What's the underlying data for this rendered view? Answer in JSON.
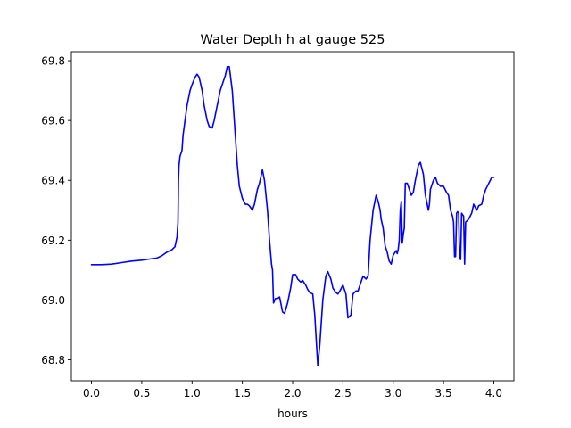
{
  "chart_data": {
    "type": "line",
    "title": "Water Depth h at gauge 525",
    "xlabel": "hours",
    "ylabel": "",
    "xlim": [
      -0.2,
      4.2
    ],
    "ylim": [
      68.73,
      69.83
    ],
    "xticks": [
      0.0,
      0.5,
      1.0,
      1.5,
      2.0,
      2.5,
      3.0,
      3.5,
      4.0
    ],
    "xtick_labels": [
      "0.0",
      "0.5",
      "1.0",
      "1.5",
      "2.0",
      "2.5",
      "3.0",
      "3.5",
      "4.0"
    ],
    "yticks": [
      68.8,
      69.0,
      69.2,
      69.4,
      69.6,
      69.8
    ],
    "ytick_labels": [
      "68.8",
      "69.0",
      "69.2",
      "69.4",
      "69.6",
      "69.8"
    ],
    "grid": false,
    "series": [
      {
        "color": "#0000ff",
        "x": [
          0.0,
          0.1,
          0.2,
          0.3,
          0.4,
          0.5,
          0.6,
          0.65,
          0.7,
          0.75,
          0.8,
          0.83,
          0.85,
          0.86,
          0.865,
          0.87,
          0.88,
          0.9,
          0.91,
          0.93,
          0.95,
          0.98,
          1.0,
          1.03,
          1.05,
          1.07,
          1.1,
          1.12,
          1.15,
          1.17,
          1.2,
          1.22,
          1.25,
          1.28,
          1.3,
          1.33,
          1.35,
          1.37,
          1.4,
          1.42,
          1.45,
          1.47,
          1.5,
          1.53,
          1.55,
          1.57,
          1.6,
          1.62,
          1.65,
          1.67,
          1.7,
          1.72,
          1.75,
          1.77,
          1.79,
          1.8,
          1.81,
          1.83,
          1.85,
          1.87,
          1.9,
          1.92,
          1.95,
          1.98,
          2.0,
          2.03,
          2.05,
          2.08,
          2.1,
          2.13,
          2.15,
          2.17,
          2.2,
          2.22,
          2.25,
          2.27,
          2.3,
          2.33,
          2.35,
          2.38,
          2.4,
          2.43,
          2.45,
          2.47,
          2.5,
          2.53,
          2.55,
          2.58,
          2.6,
          2.63,
          2.65,
          2.67,
          2.7,
          2.73,
          2.75,
          2.77,
          2.8,
          2.83,
          2.85,
          2.87,
          2.88,
          2.9,
          2.92,
          2.94,
          2.96,
          2.98,
          3.0,
          3.03,
          3.04,
          3.05,
          3.06,
          3.07,
          3.08,
          3.09,
          3.1,
          3.11,
          3.12,
          3.14,
          3.16,
          3.18,
          3.2,
          3.22,
          3.25,
          3.27,
          3.3,
          3.32,
          3.35,
          3.36,
          3.37,
          3.38,
          3.4,
          3.42,
          3.44,
          3.47,
          3.5,
          3.53,
          3.55,
          3.57,
          3.59,
          3.6,
          3.61,
          3.62,
          3.63,
          3.64,
          3.65,
          3.66,
          3.67,
          3.68,
          3.7,
          3.71,
          3.72,
          3.75,
          3.78,
          3.8,
          3.83,
          3.85,
          3.88,
          3.9,
          3.92,
          3.95,
          3.98,
          4.0
        ],
        "y": [
          69.118,
          69.118,
          69.12,
          69.125,
          69.13,
          69.133,
          69.138,
          69.14,
          69.148,
          69.16,
          69.168,
          69.178,
          69.21,
          69.26,
          69.4,
          69.45,
          69.48,
          69.5,
          69.55,
          69.6,
          69.65,
          69.7,
          69.72,
          69.745,
          69.755,
          69.745,
          69.7,
          69.65,
          69.6,
          69.58,
          69.575,
          69.6,
          69.65,
          69.7,
          69.72,
          69.75,
          69.78,
          69.78,
          69.7,
          69.6,
          69.45,
          69.38,
          69.34,
          69.32,
          69.32,
          69.315,
          69.3,
          69.32,
          69.37,
          69.39,
          69.435,
          69.4,
          69.3,
          69.2,
          69.12,
          69.1,
          68.99,
          69.005,
          69.005,
          69.01,
          68.96,
          68.955,
          68.99,
          69.04,
          69.085,
          69.085,
          69.07,
          69.06,
          69.065,
          69.05,
          69.035,
          69.025,
          69.02,
          68.95,
          68.78,
          68.85,
          69.0,
          69.08,
          69.095,
          69.07,
          69.04,
          69.025,
          69.02,
          69.03,
          69.05,
          69.02,
          68.94,
          68.95,
          69.02,
          69.03,
          69.03,
          69.05,
          69.08,
          69.07,
          69.08,
          69.2,
          69.3,
          69.35,
          69.33,
          69.3,
          69.27,
          69.24,
          69.18,
          69.16,
          69.13,
          69.12,
          69.15,
          69.165,
          69.155,
          69.17,
          69.2,
          69.3,
          69.33,
          69.19,
          69.22,
          69.24,
          69.39,
          69.39,
          69.37,
          69.35,
          69.36,
          69.4,
          69.45,
          69.46,
          69.42,
          69.35,
          69.3,
          69.32,
          69.37,
          69.38,
          69.4,
          69.41,
          69.39,
          69.38,
          69.38,
          69.36,
          69.35,
          69.3,
          69.28,
          69.26,
          69.145,
          69.145,
          69.29,
          69.295,
          69.29,
          69.14,
          69.135,
          69.29,
          69.28,
          69.12,
          69.26,
          69.27,
          69.29,
          69.32,
          69.3,
          69.315,
          69.32,
          69.35,
          69.37,
          69.39,
          69.41,
          69.41
        ]
      }
    ]
  }
}
